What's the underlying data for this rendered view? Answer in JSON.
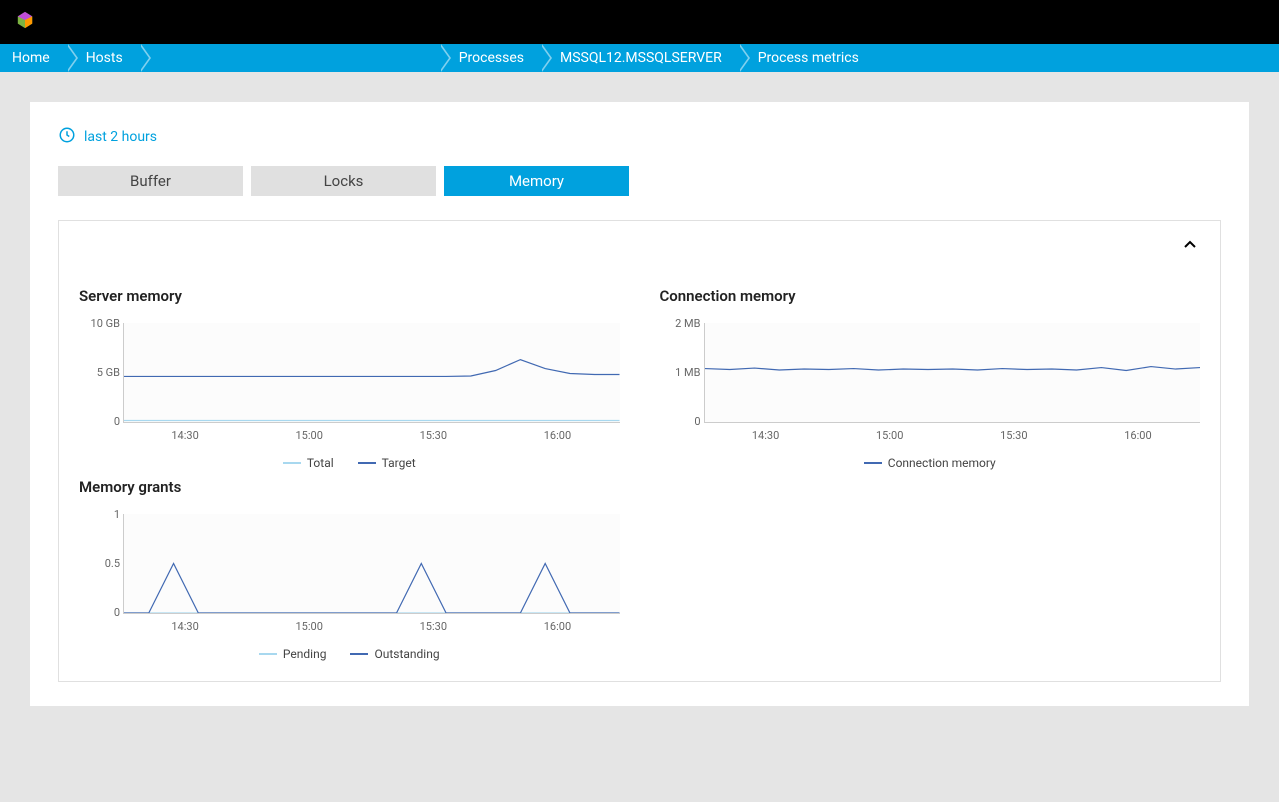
{
  "breadcrumbs": {
    "items": [
      "Home",
      "Hosts",
      "",
      "Processes",
      "MSSQL12.MSSQLSERVER",
      "Process metrics"
    ]
  },
  "timeRange": {
    "label": "last 2 hours"
  },
  "tabs": {
    "items": [
      {
        "label": "Buffer",
        "active": false
      },
      {
        "label": "Locks",
        "active": false
      },
      {
        "label": "Memory",
        "active": true
      }
    ]
  },
  "colors": {
    "accent": "#00a1de",
    "seriesLight": "#a8d8ef",
    "seriesDark": "#4169b2",
    "background": "#ffffff",
    "panelBorder": "#e0e0e0"
  },
  "charts": {
    "xticks": [
      "14:30",
      "15:00",
      "15:30",
      "16:00"
    ],
    "serverMemory": {
      "title": "Server memory",
      "type": "line",
      "ylim": [
        0,
        10
      ],
      "yticks": [
        "10 GB",
        "5 GB",
        "0"
      ],
      "series": [
        {
          "name": "Total",
          "color": "#a8d8ef",
          "values": [
            0.15,
            0.15,
            0.15,
            0.15,
            0.15,
            0.15,
            0.15,
            0.15,
            0.15,
            0.15,
            0.15,
            0.15,
            0.15,
            0.15,
            0.15,
            0.15,
            0.15,
            0.15,
            0.15,
            0.15,
            0.15
          ]
        },
        {
          "name": "Target",
          "color": "#4169b2",
          "values": [
            4.6,
            4.6,
            4.6,
            4.6,
            4.6,
            4.6,
            4.6,
            4.6,
            4.6,
            4.6,
            4.6,
            4.6,
            4.6,
            4.6,
            4.65,
            5.2,
            6.3,
            5.4,
            4.9,
            4.8,
            4.8
          ]
        }
      ]
    },
    "connectionMemory": {
      "title": "Connection memory",
      "type": "line",
      "ylim": [
        0,
        2
      ],
      "yticks": [
        "2 MB",
        "1 MB",
        "0"
      ],
      "series": [
        {
          "name": "Connection memory",
          "color": "#4169b2",
          "values": [
            1.08,
            1.06,
            1.09,
            1.05,
            1.07,
            1.06,
            1.08,
            1.05,
            1.07,
            1.06,
            1.07,
            1.05,
            1.08,
            1.06,
            1.07,
            1.05,
            1.1,
            1.04,
            1.12,
            1.07,
            1.1
          ]
        }
      ]
    },
    "memoryGrants": {
      "title": "Memory grants",
      "type": "line",
      "ylim": [
        0,
        1
      ],
      "yticks": [
        "1",
        "0.5",
        "0"
      ],
      "series": [
        {
          "name": "Pending",
          "color": "#a8d8ef",
          "values": [
            0,
            0,
            0,
            0,
            0,
            0,
            0,
            0,
            0,
            0,
            0,
            0,
            0,
            0,
            0,
            0,
            0,
            0,
            0,
            0,
            0
          ]
        },
        {
          "name": "Outstanding",
          "color": "#4169b2",
          "values": [
            0,
            0,
            0.5,
            0,
            0,
            0,
            0,
            0,
            0,
            0,
            0,
            0,
            0.5,
            0,
            0,
            0,
            0,
            0.5,
            0,
            0,
            0
          ]
        }
      ]
    }
  }
}
